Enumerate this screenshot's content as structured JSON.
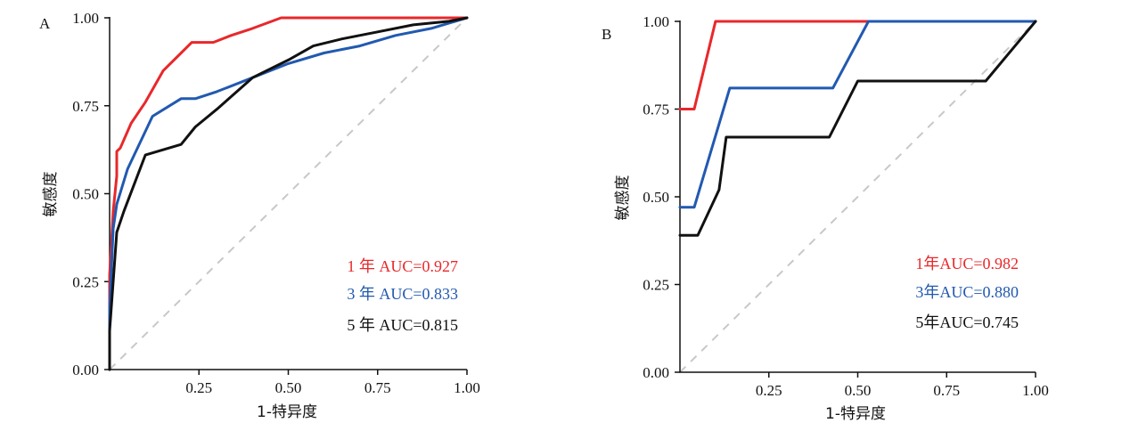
{
  "chart_data": [
    {
      "type": "line",
      "panel_label": "A",
      "xlabel": "1-特异度",
      "ylabel": "敏感度",
      "xlim": [
        0,
        1
      ],
      "ylim": [
        0,
        1
      ],
      "x_ticks": [
        "0.25",
        "0.50",
        "0.75",
        "1.00"
      ],
      "y_ticks": [
        "0.00",
        "0.25",
        "0.50",
        "0.75",
        "1.00"
      ],
      "reference_line": {
        "x": [
          0,
          1
        ],
        "y": [
          0,
          1
        ],
        "style": "dashed",
        "color": "#c8c8c8"
      },
      "series": [
        {
          "name": "1 年 AUC=0.927",
          "color": "#e8282b",
          "x": [
            0,
            0,
            0.01,
            0.02,
            0.02,
            0.03,
            0.06,
            0.1,
            0.15,
            0.2,
            0.23,
            0.29,
            0.34,
            0.4,
            0.48,
            0.6,
            0.75,
            0.9,
            1.0
          ],
          "y": [
            0,
            0.27,
            0.45,
            0.55,
            0.62,
            0.63,
            0.7,
            0.76,
            0.85,
            0.9,
            0.93,
            0.93,
            0.95,
            0.97,
            1.0,
            1.0,
            1.0,
            1.0,
            1.0
          ]
        },
        {
          "name": "3 年 AUC=0.833",
          "color": "#2259b0",
          "x": [
            0,
            0,
            0.01,
            0.02,
            0.05,
            0.12,
            0.2,
            0.24,
            0.3,
            0.4,
            0.5,
            0.6,
            0.7,
            0.8,
            0.9,
            1.0
          ],
          "y": [
            0,
            0.17,
            0.4,
            0.47,
            0.57,
            0.72,
            0.77,
            0.77,
            0.79,
            0.83,
            0.87,
            0.9,
            0.92,
            0.95,
            0.97,
            1.0
          ]
        },
        {
          "name": "5 年 AUC=0.815",
          "color": "#111111",
          "x": [
            0,
            0,
            0.02,
            0.04,
            0.1,
            0.2,
            0.24,
            0.3,
            0.4,
            0.5,
            0.57,
            0.65,
            0.75,
            0.85,
            0.95,
            1.0
          ],
          "y": [
            0,
            0.11,
            0.39,
            0.45,
            0.61,
            0.64,
            0.69,
            0.74,
            0.83,
            0.88,
            0.92,
            0.94,
            0.96,
            0.98,
            0.99,
            1.0
          ]
        }
      ],
      "legend_position": "bottom-right"
    },
    {
      "type": "line",
      "panel_label": "B",
      "xlabel": "1-特异度",
      "ylabel": "敏感度",
      "xlim": [
        0,
        1
      ],
      "ylim": [
        0,
        1
      ],
      "x_ticks": [
        "0.25",
        "0.50",
        "0.75",
        "1.00"
      ],
      "y_ticks": [
        "0.00",
        "0.25",
        "0.50",
        "0.75",
        "1.00"
      ],
      "reference_line": {
        "x": [
          0,
          1
        ],
        "y": [
          0,
          1
        ],
        "style": "dashed",
        "color": "#c8c8c8"
      },
      "series": [
        {
          "name": "1年AUC=0.982",
          "color": "#e8282b",
          "x": [
            0,
            0.04,
            0.04,
            0.1,
            0.1,
            0.53,
            1.0
          ],
          "y": [
            0.75,
            0.75,
            0.75,
            1.0,
            1.0,
            1.0,
            1.0
          ]
        },
        {
          "name": "3年AUC=0.880",
          "color": "#2259b0",
          "x": [
            0,
            0.04,
            0.04,
            0.14,
            0.14,
            0.43,
            0.53,
            1.0
          ],
          "y": [
            0.47,
            0.47,
            0.47,
            0.81,
            0.81,
            0.81,
            1.0,
            1.0
          ]
        },
        {
          "name": "5年AUC=0.745",
          "color": "#111111",
          "x": [
            0,
            0.05,
            0.05,
            0.11,
            0.13,
            0.13,
            0.42,
            0.5,
            0.86,
            1.0
          ],
          "y": [
            0.39,
            0.39,
            0.39,
            0.52,
            0.67,
            0.67,
            0.67,
            0.83,
            0.83,
            1.0
          ]
        }
      ],
      "legend_position": "bottom-right"
    }
  ]
}
